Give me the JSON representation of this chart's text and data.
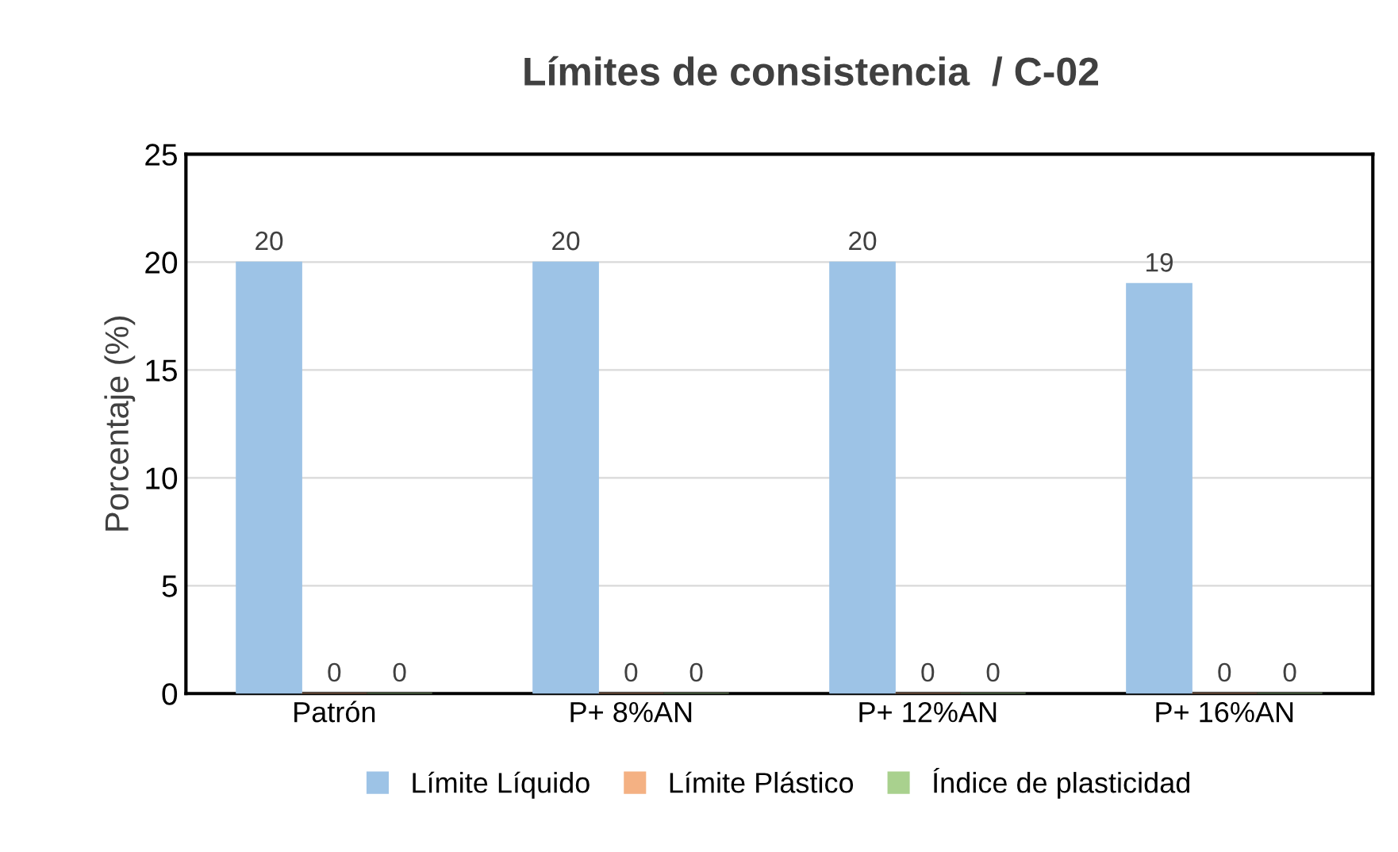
{
  "chart_data": {
    "type": "bar",
    "title": "Límites de consistencia  / C-02",
    "ylabel": "Porcentaje (%)",
    "categories": [
      "Patrón",
      "P+ 8%AN",
      "P+ 12%AN",
      "P+ 16%AN"
    ],
    "series": [
      {
        "name": "Límite Líquido",
        "color": "#9dc3e6",
        "values": [
          20,
          20,
          20,
          19
        ]
      },
      {
        "name": "Límite Plástico",
        "color": "#f4b183",
        "values": [
          0,
          0,
          0,
          0
        ]
      },
      {
        "name": "Índice de plasticidad",
        "color": "#a9d18e",
        "values": [
          0,
          0,
          0,
          0
        ]
      }
    ],
    "ylim": [
      0,
      25
    ],
    "yticks": [
      0,
      5,
      10,
      15,
      20,
      25
    ],
    "grid": "y",
    "legend": "bottom",
    "data_labels": true
  }
}
